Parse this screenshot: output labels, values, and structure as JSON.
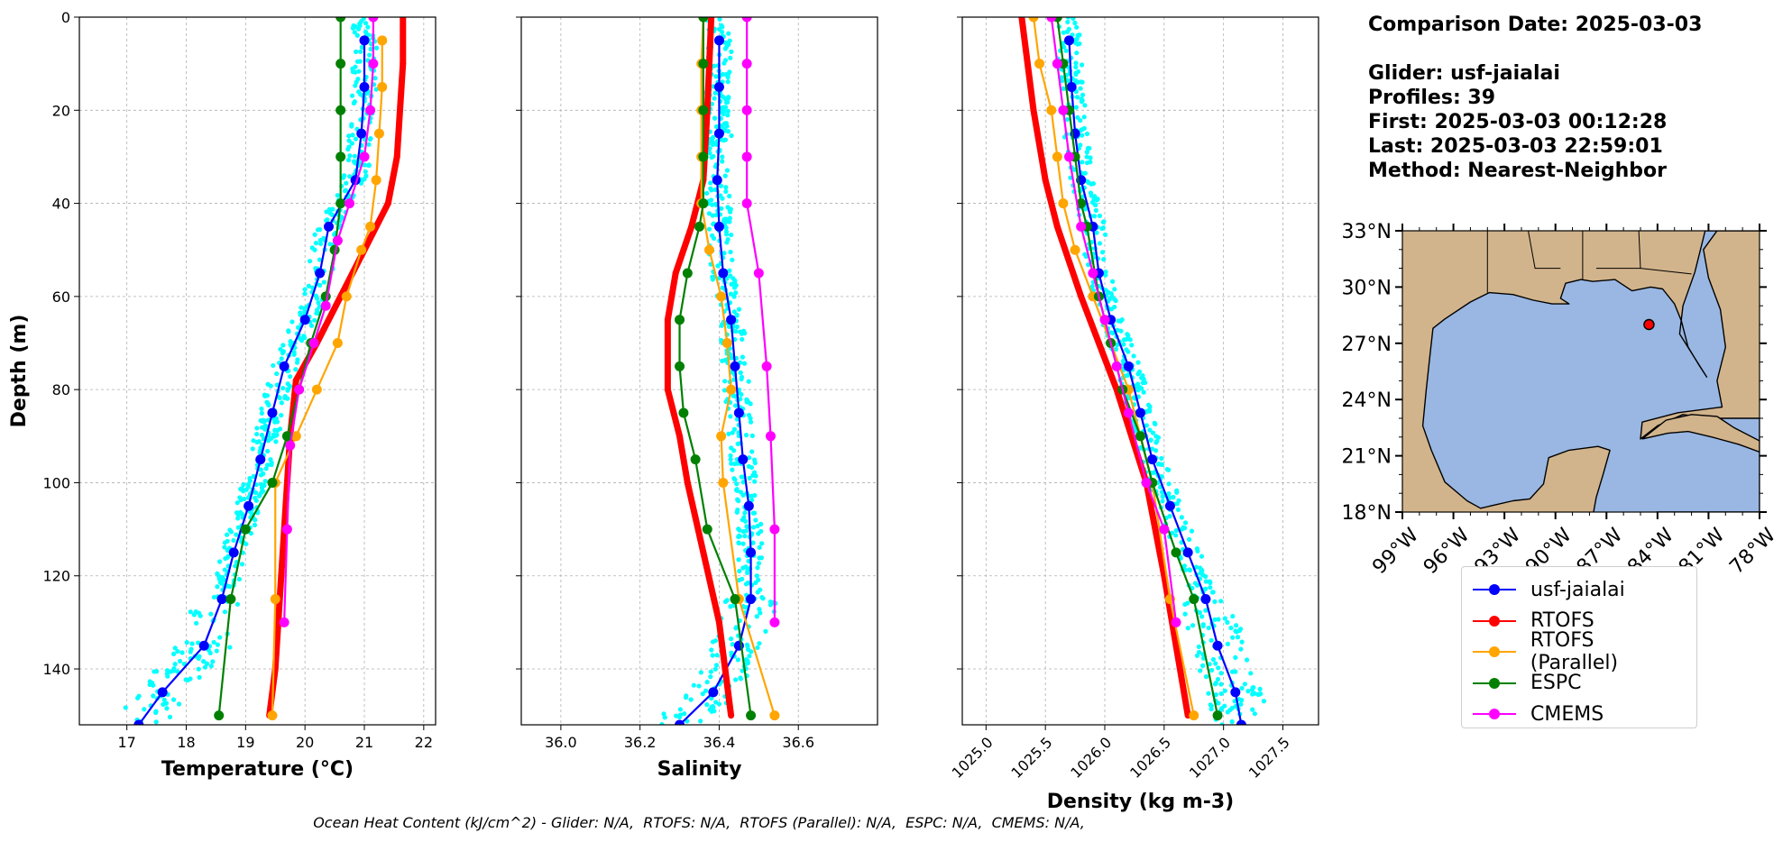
{
  "chart_data": [
    {
      "type": "line",
      "xlabel": "Temperature (°C)",
      "ylabel": "Depth (m)",
      "xlim": [
        16.2,
        22.2
      ],
      "ylim": [
        152,
        0
      ],
      "xticks": [
        "17",
        "18",
        "19",
        "20",
        "21",
        "22"
      ],
      "yticks": [
        "0",
        "20",
        "40",
        "60",
        "80",
        "100",
        "120",
        "140"
      ],
      "grid": true,
      "series": [
        {
          "name": "usf-jaialai",
          "color": "#0000ff",
          "points": [
            [
              21.0,
              5
            ],
            [
              21.0,
              15
            ],
            [
              20.95,
              25
            ],
            [
              20.85,
              35
            ],
            [
              20.4,
              45
            ],
            [
              20.25,
              55
            ],
            [
              20.0,
              65
            ],
            [
              19.65,
              75
            ],
            [
              19.45,
              85
            ],
            [
              19.25,
              95
            ],
            [
              19.05,
              105
            ],
            [
              18.8,
              115
            ],
            [
              18.6,
              125
            ],
            [
              18.3,
              135
            ],
            [
              17.6,
              145
            ],
            [
              17.2,
              152
            ]
          ]
        },
        {
          "name": "RTOFS",
          "color": "#ff0000",
          "points": [
            [
              21.65,
              0
            ],
            [
              21.65,
              10
            ],
            [
              21.6,
              20
            ],
            [
              21.55,
              30
            ],
            [
              21.4,
              40
            ],
            [
              21.0,
              50
            ],
            [
              20.6,
              60
            ],
            [
              20.2,
              70
            ],
            [
              19.85,
              78
            ],
            [
              19.75,
              90
            ],
            [
              19.7,
              100
            ],
            [
              19.6,
              120
            ],
            [
              19.5,
              140
            ],
            [
              19.4,
              150
            ]
          ]
        },
        {
          "name": "RTOFS (Parallel)",
          "color": "#ffa500",
          "points": [
            [
              21.3,
              5
            ],
            [
              21.3,
              15
            ],
            [
              21.25,
              25
            ],
            [
              21.2,
              35
            ],
            [
              21.1,
              45
            ],
            [
              20.95,
              50
            ],
            [
              20.7,
              60
            ],
            [
              20.55,
              70
            ],
            [
              20.2,
              80
            ],
            [
              19.85,
              90
            ],
            [
              19.5,
              100
            ],
            [
              19.5,
              125
            ],
            [
              19.45,
              150
            ]
          ]
        },
        {
          "name": "ESPC",
          "color": "#008000",
          "points": [
            [
              20.6,
              0
            ],
            [
              20.6,
              10
            ],
            [
              20.6,
              20
            ],
            [
              20.6,
              30
            ],
            [
              20.6,
              40
            ],
            [
              20.5,
              50
            ],
            [
              20.35,
              60
            ],
            [
              20.1,
              70
            ],
            [
              19.9,
              80
            ],
            [
              19.7,
              90
            ],
            [
              19.45,
              100
            ],
            [
              19.0,
              110
            ],
            [
              18.75,
              125
            ],
            [
              18.55,
              150
            ]
          ]
        },
        {
          "name": "CMEMS",
          "color": "#ff00ff",
          "points": [
            [
              21.15,
              0
            ],
            [
              21.15,
              10
            ],
            [
              21.1,
              20
            ],
            [
              21.0,
              30
            ],
            [
              20.75,
              40
            ],
            [
              20.55,
              48
            ],
            [
              20.35,
              62
            ],
            [
              20.15,
              70
            ],
            [
              19.9,
              80
            ],
            [
              19.75,
              92
            ],
            [
              19.7,
              110
            ],
            [
              19.65,
              130
            ]
          ]
        }
      ]
    },
    {
      "type": "line",
      "xlabel": "Salinity",
      "xlim": [
        35.9,
        36.8
      ],
      "ylim": [
        152,
        0
      ],
      "xticks": [
        "36.0",
        "36.2",
        "36.4",
        "36.6"
      ],
      "yticks": [
        "0",
        "20",
        "40",
        "60",
        "80",
        "100",
        "120",
        "140"
      ],
      "grid": true,
      "series": [
        {
          "name": "usf-jaialai",
          "color": "#0000ff",
          "points": [
            [
              36.4,
              5
            ],
            [
              36.4,
              15
            ],
            [
              36.4,
              25
            ],
            [
              36.395,
              35
            ],
            [
              36.4,
              45
            ],
            [
              36.41,
              55
            ],
            [
              36.43,
              65
            ],
            [
              36.44,
              75
            ],
            [
              36.45,
              85
            ],
            [
              36.46,
              95
            ],
            [
              36.475,
              105
            ],
            [
              36.48,
              115
            ],
            [
              36.48,
              125
            ],
            [
              36.45,
              135
            ],
            [
              36.385,
              145
            ],
            [
              36.3,
              152
            ]
          ]
        },
        {
          "name": "RTOFS",
          "color": "#ff0000",
          "points": [
            [
              36.38,
              0
            ],
            [
              36.37,
              20
            ],
            [
              36.36,
              35
            ],
            [
              36.33,
              45
            ],
            [
              36.29,
              55
            ],
            [
              36.27,
              65
            ],
            [
              36.27,
              80
            ],
            [
              36.3,
              90
            ],
            [
              36.32,
              100
            ],
            [
              36.36,
              115
            ],
            [
              36.4,
              130
            ],
            [
              36.43,
              150
            ]
          ]
        },
        {
          "name": "RTOFS (Parallel)",
          "color": "#ffa500",
          "points": [
            [
              36.36,
              0
            ],
            [
              36.355,
              10
            ],
            [
              36.355,
              20
            ],
            [
              36.355,
              30
            ],
            [
              36.355,
              40
            ],
            [
              36.375,
              50
            ],
            [
              36.405,
              60
            ],
            [
              36.42,
              70
            ],
            [
              36.43,
              80
            ],
            [
              36.405,
              90
            ],
            [
              36.41,
              100
            ],
            [
              36.45,
              125
            ],
            [
              36.54,
              150
            ]
          ]
        },
        {
          "name": "ESPC",
          "color": "#008000",
          "points": [
            [
              36.36,
              0
            ],
            [
              36.36,
              10
            ],
            [
              36.36,
              20
            ],
            [
              36.36,
              30
            ],
            [
              36.36,
              40
            ],
            [
              36.35,
              45
            ],
            [
              36.32,
              55
            ],
            [
              36.3,
              65
            ],
            [
              36.3,
              75
            ],
            [
              36.31,
              85
            ],
            [
              36.34,
              95
            ],
            [
              36.37,
              110
            ],
            [
              36.44,
              125
            ],
            [
              36.48,
              150
            ]
          ]
        },
        {
          "name": "CMEMS",
          "color": "#ff00ff",
          "points": [
            [
              36.47,
              0
            ],
            [
              36.47,
              10
            ],
            [
              36.47,
              20
            ],
            [
              36.47,
              30
            ],
            [
              36.47,
              40
            ],
            [
              36.5,
              55
            ],
            [
              36.52,
              75
            ],
            [
              36.53,
              90
            ],
            [
              36.54,
              110
            ],
            [
              36.54,
              130
            ]
          ]
        }
      ]
    },
    {
      "type": "line",
      "xlabel": "Density (kg m-3)",
      "xlim": [
        1024.8,
        1027.8
      ],
      "ylim": [
        152,
        0
      ],
      "xticks": [
        "1025.0",
        "1025.5",
        "1026.0",
        "1026.5",
        "1027.0",
        "1027.5"
      ],
      "yticks": [
        "0",
        "20",
        "40",
        "60",
        "80",
        "100",
        "120",
        "140"
      ],
      "grid": true,
      "series": [
        {
          "name": "usf-jaialai",
          "color": "#0000ff",
          "points": [
            [
              1025.7,
              5
            ],
            [
              1025.72,
              15
            ],
            [
              1025.75,
              25
            ],
            [
              1025.8,
              35
            ],
            [
              1025.9,
              45
            ],
            [
              1025.95,
              55
            ],
            [
              1026.05,
              65
            ],
            [
              1026.2,
              75
            ],
            [
              1026.3,
              85
            ],
            [
              1026.4,
              95
            ],
            [
              1026.55,
              105
            ],
            [
              1026.7,
              115
            ],
            [
              1026.85,
              125
            ],
            [
              1026.95,
              135
            ],
            [
              1027.1,
              145
            ],
            [
              1027.15,
              152
            ]
          ]
        },
        {
          "name": "RTOFS",
          "color": "#ff0000",
          "points": [
            [
              1025.3,
              0
            ],
            [
              1025.4,
              20
            ],
            [
              1025.5,
              35
            ],
            [
              1025.6,
              45
            ],
            [
              1025.8,
              60
            ],
            [
              1025.95,
              70
            ],
            [
              1026.1,
              80
            ],
            [
              1026.25,
              92
            ],
            [
              1026.35,
              100
            ],
            [
              1026.5,
              120
            ],
            [
              1026.6,
              135
            ],
            [
              1026.7,
              150
            ]
          ]
        },
        {
          "name": "RTOFS (Parallel)",
          "color": "#ffa500",
          "points": [
            [
              1025.4,
              0
            ],
            [
              1025.45,
              10
            ],
            [
              1025.55,
              20
            ],
            [
              1025.6,
              30
            ],
            [
              1025.65,
              40
            ],
            [
              1025.75,
              50
            ],
            [
              1025.9,
              60
            ],
            [
              1026.05,
              70
            ],
            [
              1026.2,
              80
            ],
            [
              1026.3,
              90
            ],
            [
              1026.4,
              100
            ],
            [
              1026.55,
              125
            ],
            [
              1026.75,
              150
            ]
          ]
        },
        {
          "name": "ESPC",
          "color": "#008000",
          "points": [
            [
              1025.6,
              0
            ],
            [
              1025.65,
              10
            ],
            [
              1025.7,
              20
            ],
            [
              1025.75,
              30
            ],
            [
              1025.8,
              40
            ],
            [
              1025.85,
              45
            ],
            [
              1025.95,
              60
            ],
            [
              1026.05,
              70
            ],
            [
              1026.15,
              80
            ],
            [
              1026.3,
              90
            ],
            [
              1026.4,
              100
            ],
            [
              1026.6,
              115
            ],
            [
              1026.75,
              125
            ],
            [
              1026.95,
              150
            ]
          ]
        },
        {
          "name": "CMEMS",
          "color": "#ff00ff",
          "points": [
            [
              1025.55,
              0
            ],
            [
              1025.6,
              10
            ],
            [
              1025.65,
              20
            ],
            [
              1025.7,
              30
            ],
            [
              1025.8,
              45
            ],
            [
              1025.9,
              55
            ],
            [
              1026.0,
              65
            ],
            [
              1026.1,
              75
            ],
            [
              1026.2,
              85
            ],
            [
              1026.35,
              100
            ],
            [
              1026.5,
              110
            ],
            [
              1026.6,
              130
            ]
          ]
        }
      ]
    },
    {
      "type": "map",
      "xlim": [
        -99,
        -78
      ],
      "ylim": [
        18,
        33
      ],
      "xticks": [
        "99°W",
        "96°W",
        "93°W",
        "90°W",
        "87°W",
        "84°W",
        "81°W",
        "78°W"
      ],
      "yticks": [
        "33°N",
        "30°N",
        "27°N",
        "24°N",
        "21°N",
        "18°N"
      ],
      "marker": {
        "lon": -84.5,
        "lat": 28.0,
        "color": "#ff0000"
      }
    }
  ],
  "info": {
    "comparison_date": "Comparison Date: 2025-03-03",
    "glider": "Glider: usf-jaialai",
    "profiles": "Profiles: 39",
    "first": "First: 2025-03-03 00:12:28",
    "last": "Last: 2025-03-03 22:59:01",
    "method": "Method: Nearest-Neighbor"
  },
  "legend": [
    {
      "label": "usf-jaialai",
      "color": "#0000ff"
    },
    {
      "label": "RTOFS",
      "color": "#ff0000"
    },
    {
      "label": "RTOFS (Parallel)",
      "color": "#ffa500"
    },
    {
      "label": "ESPC",
      "color": "#008000"
    },
    {
      "label": "CMEMS",
      "color": "#ff00ff"
    }
  ],
  "footer": "Ocean Heat Content (kJ/cm^2) - Glider: N/A,  RTOFS: N/A,  RTOFS (Parallel): N/A,  ESPC: N/A,  CMEMS: N/A,",
  "colors": {
    "obs_scatter": "#00ffff",
    "grid": "#b0b0b0",
    "land": "#d2b48c",
    "water": "#99b7e2"
  }
}
